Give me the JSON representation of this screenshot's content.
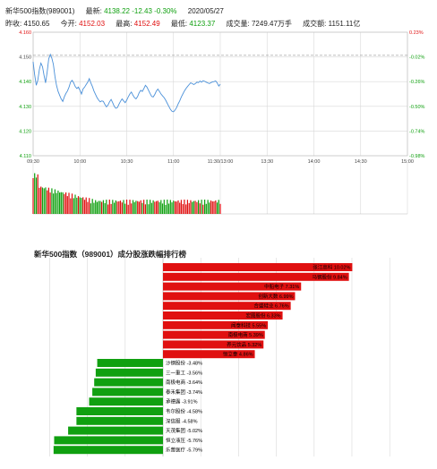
{
  "header": {
    "name": "新华500指数(989001)",
    "latest_label": "最新:",
    "latest_value": "4138.22",
    "change": "-12.43",
    "change_pct": "-0.30%",
    "date": "2020/05/27",
    "prev_close_label": "昨收:",
    "prev_close": "4150.65",
    "open_label": "今开:",
    "open": "4152.03",
    "high_label": "最高:",
    "high": "4152.49",
    "low_label": "最低:",
    "low": "4123.37",
    "volume_label": "成交量:",
    "volume": "7249.47万手",
    "amount_label": "成交额:",
    "amount": "1151.11亿"
  },
  "colors": {
    "up": "#e01010",
    "down": "#10a010",
    "line": "#4a90d9",
    "grid": "#d8d8d8"
  },
  "chart_data": [
    {
      "type": "line",
      "x_ticks": [
        "09:30",
        "10:00",
        "10:30",
        "11:00",
        "11:30/13:00",
        "13:30",
        "14:00",
        "14:30",
        "15:00"
      ],
      "y_ticks_left": [
        "4.160",
        "4.150",
        "4.140",
        "4.130",
        "4.120",
        "4.110"
      ],
      "y_ticks_right": [
        "0.23%",
        "-0.02%",
        "-0.26%",
        "-0.50%",
        "-0.74%",
        "-0.98%"
      ],
      "ylim": [
        4.11,
        4.16
      ],
      "prev_close": 4.15065,
      "series": [
        {
          "values": [
            4.148,
            4.1428,
            4.1385,
            4.1405,
            4.145,
            4.1475,
            4.146,
            4.1425,
            4.1395,
            4.144,
            4.1492,
            4.151,
            4.1495,
            4.147,
            4.142,
            4.1385,
            4.136,
            4.1345,
            4.133,
            4.132,
            4.1338,
            4.1352,
            4.1362,
            4.1378,
            4.1398,
            4.1405,
            4.1395,
            4.138,
            4.1372,
            4.1378,
            4.1365,
            4.135,
            4.137,
            4.1378,
            4.1388,
            4.1398,
            4.1412,
            4.1395,
            4.138,
            4.1362,
            4.1348,
            4.1335,
            4.1325,
            4.1318,
            4.1322,
            4.132,
            4.1308,
            4.1298,
            4.1305,
            4.1318,
            4.1328,
            4.1315,
            4.13,
            4.1292,
            4.1295,
            4.1308,
            4.132,
            4.133,
            4.1322,
            4.1315,
            4.1325,
            4.1338,
            4.135,
            4.1358,
            4.1345,
            4.1335,
            4.133,
            4.134,
            4.1355,
            4.1365,
            4.136,
            4.1372,
            4.1385,
            4.1378,
            4.1365,
            4.1352,
            4.134,
            4.1338,
            4.1348,
            4.1362,
            4.137,
            4.136,
            4.135,
            4.1342,
            4.1335,
            4.1325,
            4.1312,
            4.13,
            4.1288,
            4.128,
            4.1278,
            4.1285,
            4.1295,
            4.131,
            4.1322,
            4.1338,
            4.135,
            4.1362,
            4.1372,
            4.138,
            4.1388,
            4.1395,
            4.1392,
            4.1388,
            4.1392,
            4.1398,
            4.1396,
            4.1402,
            4.1398,
            4.1404,
            4.1401,
            4.1398,
            4.1395,
            4.1392,
            4.1396,
            4.1399,
            4.14,
            4.1403,
            4.1395,
            4.1382,
            4.139
          ]
        }
      ]
    },
    {
      "type": "bar",
      "title": "新华500指数（989001）成分股涨跌幅排行榜",
      "up_categories": [
        "张江高科",
        "马钢股份",
        "中船电子",
        "创新大数",
        "合盛硅业",
        "宏图股份",
        "闻泰科技",
        "南极电商",
        "养元饮品",
        "恒立泰"
      ],
      "up_values": [
        10.02,
        9.84,
        7.31,
        6.99,
        6.76,
        6.33,
        5.55,
        5.39,
        5.32,
        4.86
      ],
      "down_categories": [
        "沙钢股份",
        "三一重工",
        "南极电商",
        "泰禾集团",
        "承德露",
        "韦尔股份",
        "深信服",
        "天茂集团",
        "恒立液压",
        "乐普医疗"
      ],
      "down_values": [
        -3.48,
        -3.56,
        -3.64,
        -3.74,
        -3.91,
        -4.58,
        -4.58,
        -5.02,
        -5.76,
        -5.79
      ]
    }
  ]
}
